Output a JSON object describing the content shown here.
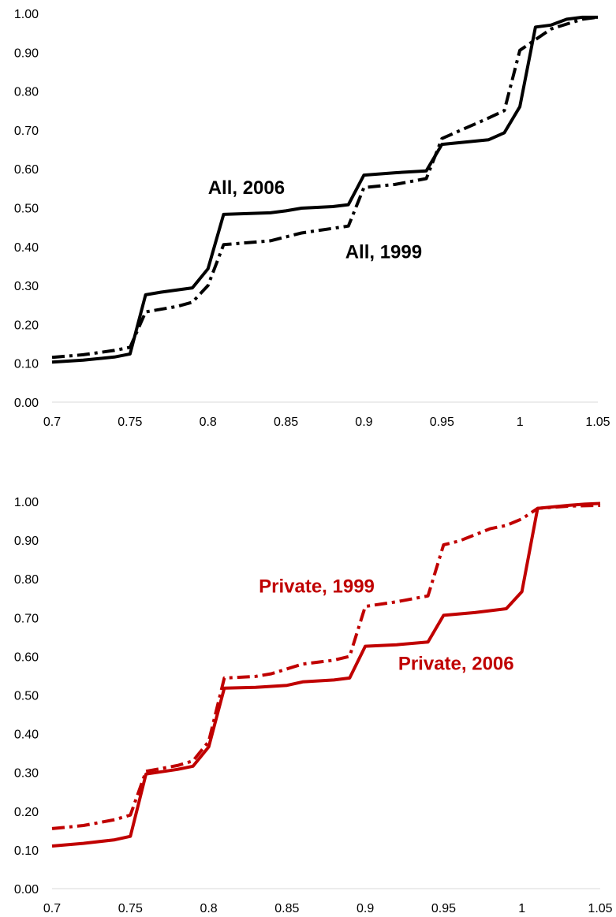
{
  "chart_data": [
    {
      "type": "line",
      "title": "",
      "xlabel": "",
      "ylabel": "",
      "xlim": [
        0.7,
        1.05
      ],
      "ylim": [
        0,
        1
      ],
      "grid": false,
      "x_ticks": [
        "0.7",
        "0.75",
        "0.8",
        "0.85",
        "0.9",
        "0.95",
        "1",
        "1.05"
      ],
      "y_ticks": [
        "0.00",
        "0.10",
        "0.20",
        "0.30",
        "0.40",
        "0.50",
        "0.60",
        "0.70",
        "0.80",
        "0.90",
        "1.00"
      ],
      "series": [
        {
          "name": "All, 2006",
          "color": "#000000",
          "style": "solid",
          "points": [
            [
              0.7,
              0.103
            ],
            [
              0.72,
              0.108
            ],
            [
              0.74,
              0.116
            ],
            [
              0.75,
              0.124
            ],
            [
              0.76,
              0.276
            ],
            [
              0.77,
              0.283
            ],
            [
              0.79,
              0.294
            ],
            [
              0.8,
              0.343
            ],
            [
              0.81,
              0.483
            ],
            [
              0.84,
              0.487
            ],
            [
              0.85,
              0.492
            ],
            [
              0.86,
              0.499
            ],
            [
              0.88,
              0.503
            ],
            [
              0.89,
              0.508
            ],
            [
              0.9,
              0.584
            ],
            [
              0.92,
              0.59
            ],
            [
              0.94,
              0.595
            ],
            [
              0.95,
              0.663
            ],
            [
              0.98,
              0.675
            ],
            [
              0.99,
              0.693
            ],
            [
              1.0,
              0.76
            ],
            [
              1.01,
              0.965
            ],
            [
              1.02,
              0.97
            ],
            [
              1.03,
              0.985
            ],
            [
              1.04,
              0.99
            ],
            [
              1.05,
              0.99
            ]
          ]
        },
        {
          "name": "All, 1999",
          "color": "#000000",
          "style": "dash-dot",
          "points": [
            [
              0.7,
              0.115
            ],
            [
              0.72,
              0.122
            ],
            [
              0.74,
              0.133
            ],
            [
              0.75,
              0.141
            ],
            [
              0.76,
              0.232
            ],
            [
              0.78,
              0.246
            ],
            [
              0.79,
              0.257
            ],
            [
              0.8,
              0.3
            ],
            [
              0.81,
              0.405
            ],
            [
              0.84,
              0.415
            ],
            [
              0.86,
              0.435
            ],
            [
              0.88,
              0.447
            ],
            [
              0.89,
              0.453
            ],
            [
              0.9,
              0.552
            ],
            [
              0.92,
              0.56
            ],
            [
              0.94,
              0.575
            ],
            [
              0.95,
              0.678
            ],
            [
              0.98,
              0.731
            ],
            [
              0.99,
              0.75
            ],
            [
              1.0,
              0.905
            ],
            [
              1.02,
              0.96
            ],
            [
              1.04,
              0.985
            ],
            [
              1.05,
              0.99
            ]
          ]
        }
      ],
      "annotations": [
        {
          "text": "All, 2006",
          "x": 0.8,
          "y": 0.535,
          "color": "#000000"
        },
        {
          "text": "All, 1999",
          "x": 0.888,
          "y": 0.37,
          "color": "#000000"
        }
      ]
    },
    {
      "type": "line",
      "title": "",
      "xlabel": "",
      "ylabel": "",
      "xlim": [
        0.7,
        1.05
      ],
      "ylim": [
        0,
        1
      ],
      "grid": false,
      "x_ticks": [
        "0.7",
        "0.75",
        "0.8",
        "0.85",
        "0.9",
        "0.95",
        "1",
        "1.05"
      ],
      "y_ticks": [
        "0.00",
        "0.10",
        "0.20",
        "0.30",
        "0.40",
        "0.50",
        "0.60",
        "0.70",
        "0.80",
        "0.90",
        "1.00"
      ],
      "series": [
        {
          "name": "Private, 2006",
          "color": "#c00000",
          "style": "solid",
          "points": [
            [
              0.7,
              0.11
            ],
            [
              0.72,
              0.117
            ],
            [
              0.74,
              0.126
            ],
            [
              0.75,
              0.135
            ],
            [
              0.76,
              0.296
            ],
            [
              0.78,
              0.308
            ],
            [
              0.79,
              0.316
            ],
            [
              0.8,
              0.366
            ],
            [
              0.81,
              0.518
            ],
            [
              0.83,
              0.52
            ],
            [
              0.85,
              0.525
            ],
            [
              0.86,
              0.534
            ],
            [
              0.88,
              0.539
            ],
            [
              0.89,
              0.544
            ],
            [
              0.9,
              0.626
            ],
            [
              0.92,
              0.63
            ],
            [
              0.94,
              0.637
            ],
            [
              0.95,
              0.706
            ],
            [
              0.97,
              0.713
            ],
            [
              0.99,
              0.723
            ],
            [
              1.0,
              0.767
            ],
            [
              1.01,
              0.982
            ],
            [
              1.03,
              0.99
            ],
            [
              1.04,
              0.993
            ],
            [
              1.05,
              0.995
            ]
          ]
        },
        {
          "name": "Private, 1999",
          "color": "#c00000",
          "style": "dash-dot",
          "points": [
            [
              0.7,
              0.155
            ],
            [
              0.72,
              0.163
            ],
            [
              0.74,
              0.178
            ],
            [
              0.75,
              0.19
            ],
            [
              0.76,
              0.303
            ],
            [
              0.78,
              0.318
            ],
            [
              0.79,
              0.33
            ],
            [
              0.8,
              0.38
            ],
            [
              0.81,
              0.544
            ],
            [
              0.83,
              0.548
            ],
            [
              0.84,
              0.555
            ],
            [
              0.86,
              0.58
            ],
            [
              0.88,
              0.59
            ],
            [
              0.89,
              0.6
            ],
            [
              0.9,
              0.729
            ],
            [
              0.92,
              0.741
            ],
            [
              0.94,
              0.756
            ],
            [
              0.95,
              0.888
            ],
            [
              0.96,
              0.898
            ],
            [
              0.98,
              0.93
            ],
            [
              0.99,
              0.938
            ],
            [
              1.0,
              0.955
            ],
            [
              1.01,
              0.982
            ],
            [
              1.03,
              0.988
            ],
            [
              1.05,
              0.99
            ]
          ]
        }
      ],
      "annotations": [
        {
          "text": "Private, 1999",
          "x": 0.832,
          "y": 0.765,
          "color": "#c00000"
        },
        {
          "text": "Private, 2006",
          "x": 0.921,
          "y": 0.565,
          "color": "#c00000"
        }
      ]
    }
  ]
}
